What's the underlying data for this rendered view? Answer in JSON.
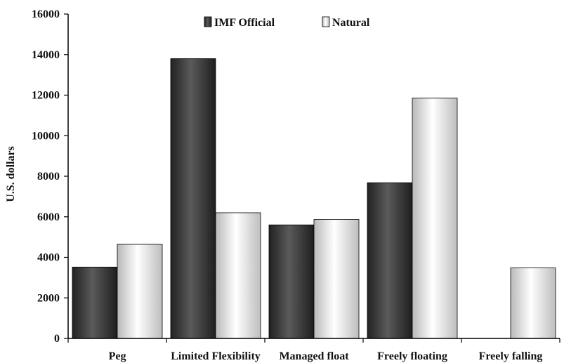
{
  "chart_data": {
    "type": "bar",
    "title": "",
    "xlabel": "",
    "ylabel": "U.S. dollars",
    "ylim": [
      0,
      16000
    ],
    "yticks": [
      0,
      2000,
      4000,
      6000,
      8000,
      10000,
      12000,
      14000,
      16000
    ],
    "categories": [
      "Peg",
      "Limited Flexibility",
      "Managed float",
      "Freely floating",
      "Freely falling"
    ],
    "series": [
      {
        "name": "IMF Official",
        "color": "#3a3a3a",
        "values": [
          3520,
          13800,
          5600,
          7680,
          0
        ]
      },
      {
        "name": "Natural",
        "color": "#e6e6e6",
        "values": [
          4640,
          6200,
          5870,
          11850,
          3480
        ]
      }
    ],
    "legend": "top-center",
    "grid": false
  }
}
